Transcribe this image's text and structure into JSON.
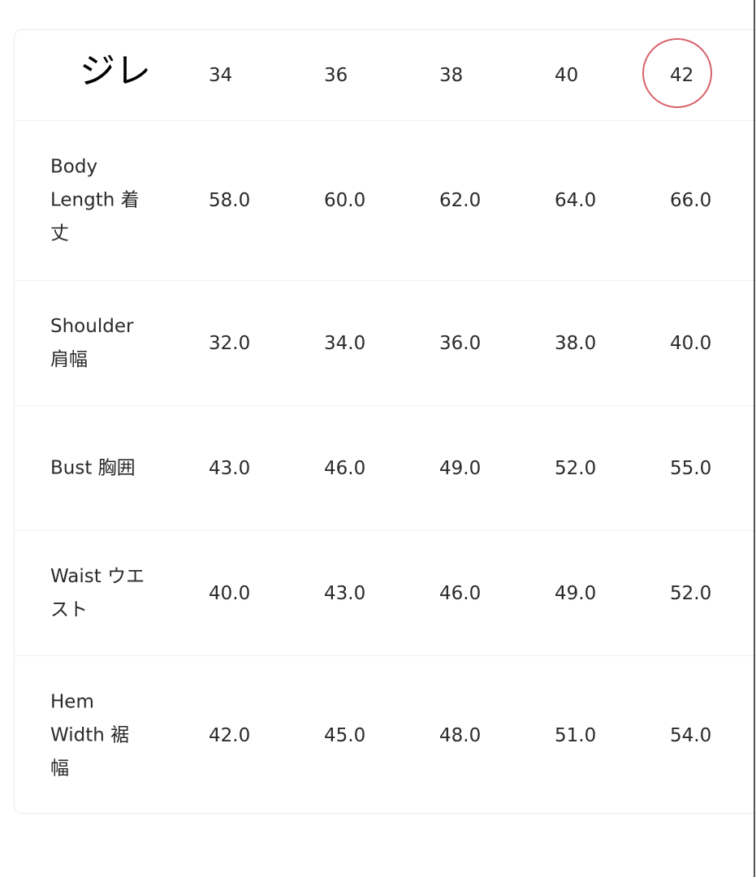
{
  "table": {
    "title": "ジレ",
    "sizes": [
      "34",
      "36",
      "38",
      "40",
      "42"
    ],
    "highlighted_size": "42",
    "highlight_color": "#d9626a",
    "rows": [
      {
        "label": "Body Length 着丈",
        "values": [
          "58.0",
          "60.0",
          "62.0",
          "64.0",
          "66.0"
        ]
      },
      {
        "label": "Shoulder 肩幅",
        "values": [
          "32.0",
          "34.0",
          "36.0",
          "38.0",
          "40.0"
        ]
      },
      {
        "label": "Bust 胸囲",
        "values": [
          "43.0",
          "46.0",
          "49.0",
          "52.0",
          "55.0"
        ]
      },
      {
        "label": "Waist ウエスト",
        "values": [
          "40.0",
          "43.0",
          "46.0",
          "49.0",
          "52.0"
        ]
      },
      {
        "label": "Hem Width 裾幅",
        "values": [
          "42.0",
          "45.0",
          "48.0",
          "51.0",
          "54.0"
        ]
      }
    ]
  }
}
